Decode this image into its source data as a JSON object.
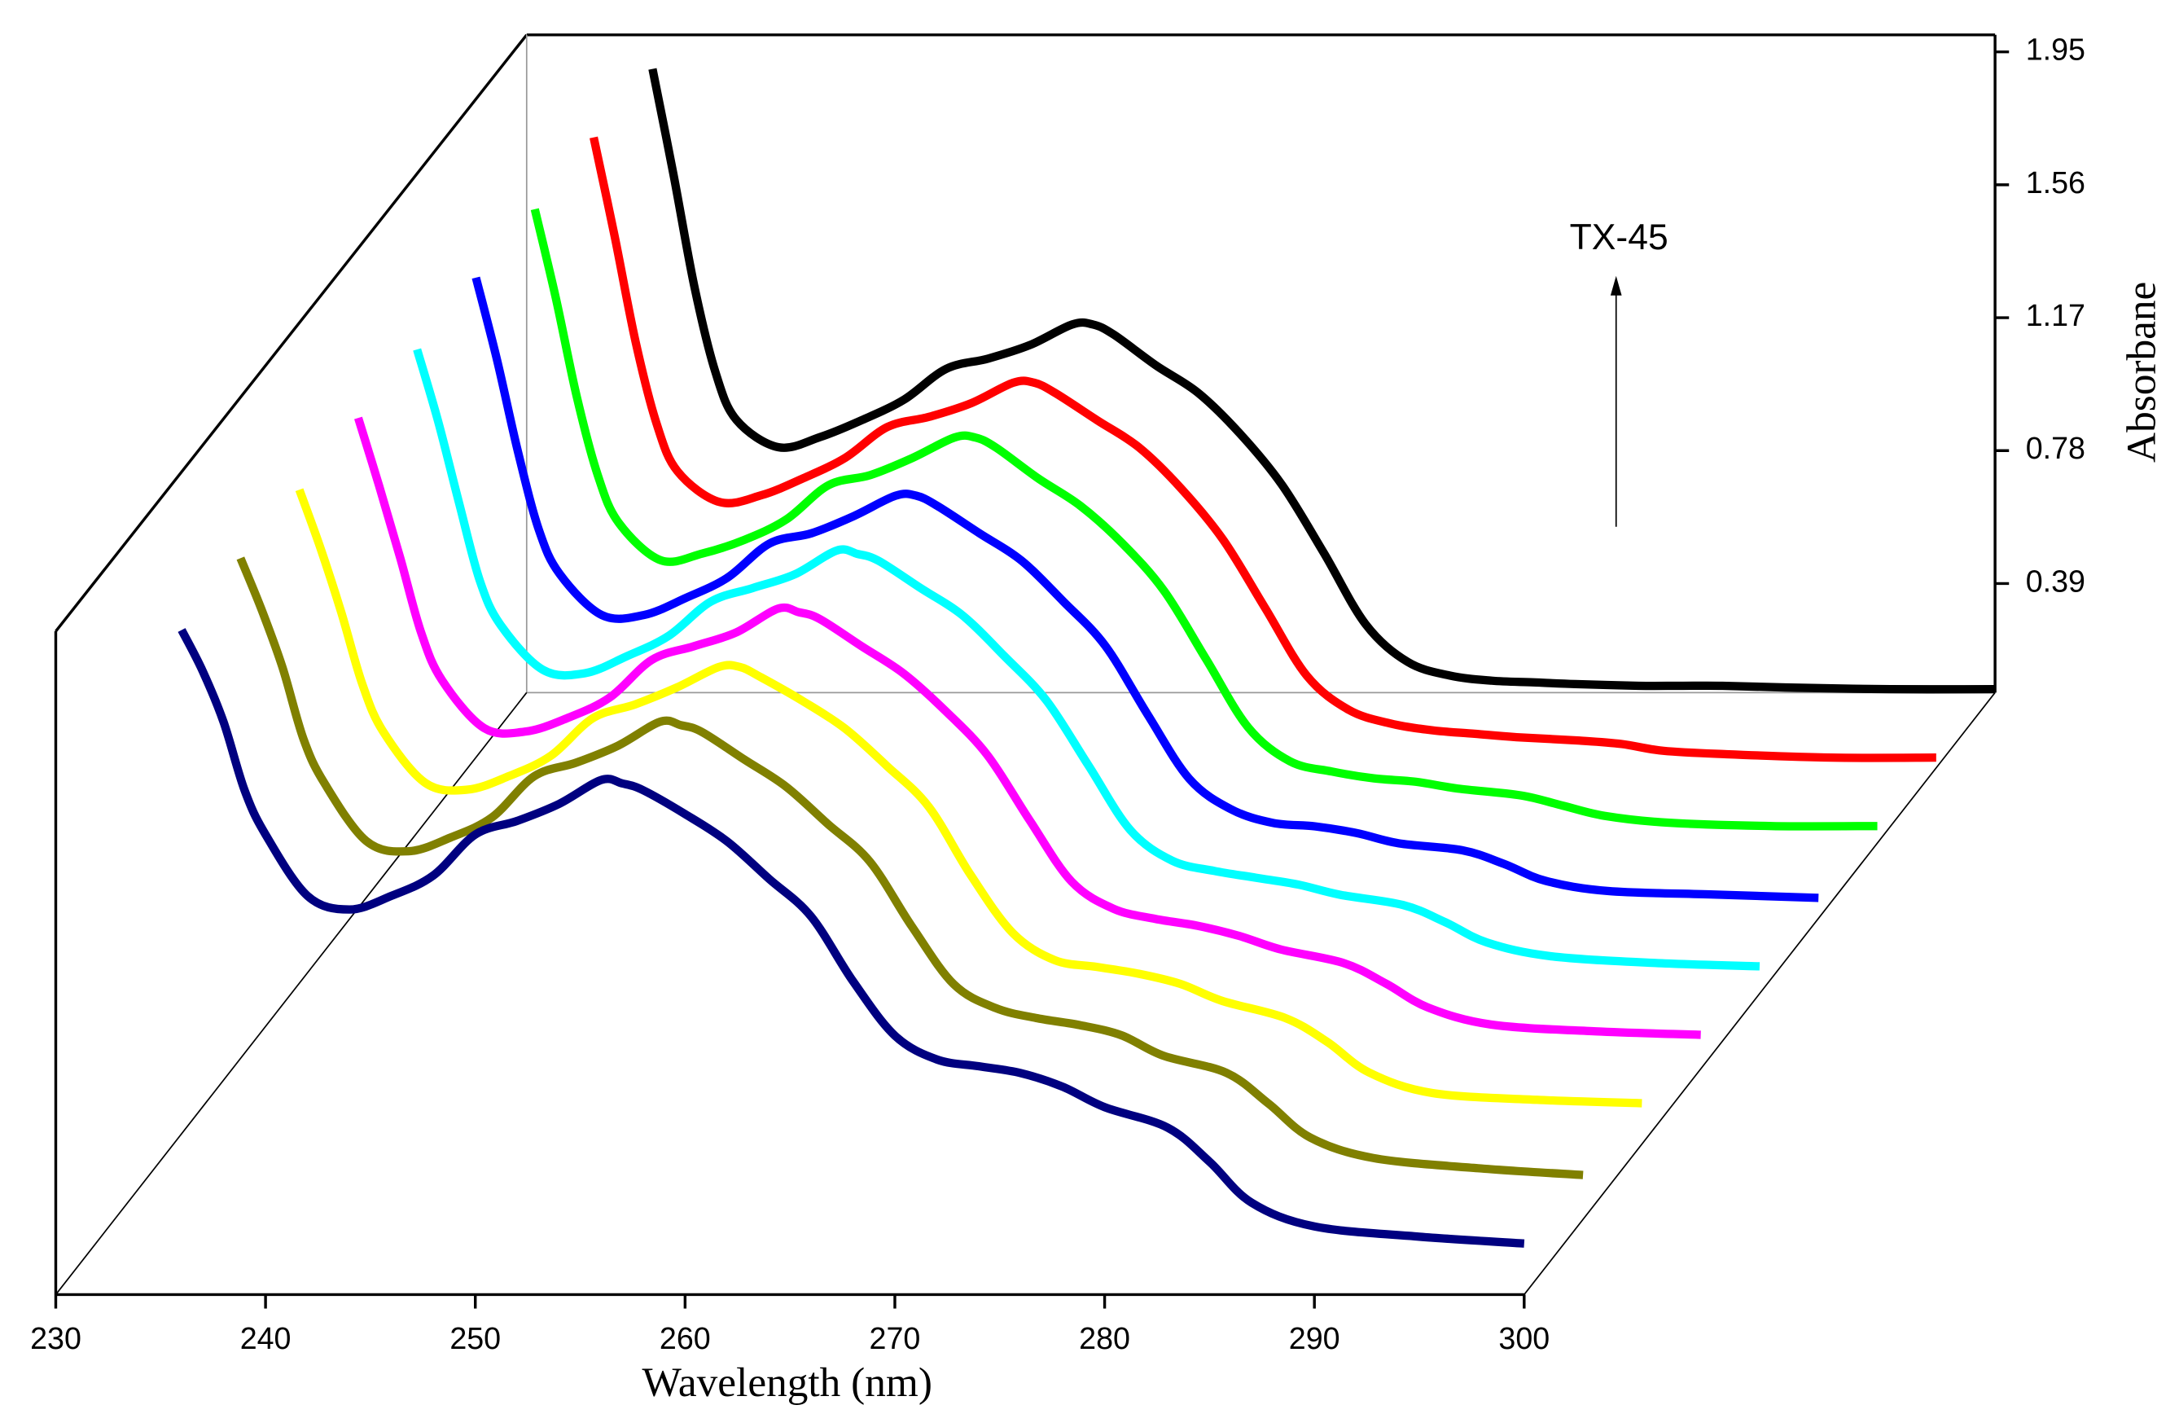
{
  "chart_data": {
    "type": "waterfall",
    "xlabel": "Wavelength (nm)",
    "ylabel": "Absorbane",
    "annotation": "TX-45",
    "x": [
      236,
      237,
      238,
      239,
      240,
      242,
      244,
      246,
      248,
      250,
      252,
      254,
      256,
      257,
      258,
      260,
      262,
      264,
      266,
      268,
      270,
      272,
      274,
      276,
      278,
      280,
      283,
      285,
      287,
      290,
      295,
      300
    ],
    "xlim": [
      230,
      300
    ],
    "xticks": [
      230,
      240,
      250,
      260,
      270,
      280,
      290,
      300
    ],
    "ylim": [
      0.07,
      2.0
    ],
    "yticks": [
      0.39,
      0.78,
      1.17,
      1.56,
      1.95
    ],
    "series": [
      {
        "color": "#000000",
        "values": [
          1.9,
          1.59,
          1.26,
          1.01,
          0.87,
          0.79,
          0.82,
          0.87,
          0.93,
          1.02,
          1.05,
          1.09,
          1.15,
          1.15,
          1.12,
          1.03,
          0.95,
          0.83,
          0.68,
          0.48,
          0.27,
          0.16,
          0.12,
          0.105,
          0.1,
          0.095,
          0.09,
          0.09,
          0.09,
          0.085,
          0.08,
          0.08
        ]
      },
      {
        "color": "#ff0000",
        "values": [
          1.92,
          1.63,
          1.32,
          1.08,
          0.94,
          0.85,
          0.87,
          0.92,
          0.98,
          1.07,
          1.1,
          1.14,
          1.2,
          1.2,
          1.17,
          1.09,
          1.01,
          0.89,
          0.74,
          0.54,
          0.34,
          0.24,
          0.2,
          0.18,
          0.17,
          0.16,
          0.15,
          0.14,
          0.12,
          0.11,
          0.1,
          0.1
        ]
      },
      {
        "color": "#00ff00",
        "values": [
          1.93,
          1.67,
          1.38,
          1.15,
          1.01,
          0.9,
          0.92,
          0.96,
          1.02,
          1.12,
          1.15,
          1.2,
          1.26,
          1.26,
          1.23,
          1.14,
          1.06,
          0.95,
          0.81,
          0.61,
          0.41,
          0.31,
          0.28,
          0.26,
          0.25,
          0.23,
          0.21,
          0.18,
          0.15,
          0.13,
          0.12,
          0.12
        ]
      },
      {
        "color": "#0000ff",
        "values": [
          1.95,
          1.71,
          1.44,
          1.21,
          1.08,
          0.96,
          0.96,
          1.01,
          1.07,
          1.17,
          1.2,
          1.25,
          1.31,
          1.31,
          1.28,
          1.2,
          1.12,
          1.0,
          0.87,
          0.67,
          0.48,
          0.39,
          0.35,
          0.34,
          0.32,
          0.29,
          0.27,
          0.23,
          0.18,
          0.15,
          0.14,
          0.13
        ]
      },
      {
        "color": "#00ffff",
        "values": [
          1.96,
          1.75,
          1.51,
          1.28,
          1.15,
          1.02,
          1.01,
          1.06,
          1.12,
          1.22,
          1.26,
          1.3,
          1.37,
          1.36,
          1.34,
          1.26,
          1.18,
          1.06,
          0.93,
          0.74,
          0.55,
          0.46,
          0.43,
          0.41,
          0.39,
          0.36,
          0.33,
          0.28,
          0.22,
          0.18,
          0.16,
          0.15
        ]
      },
      {
        "color": "#ff00ff",
        "values": [
          1.98,
          1.78,
          1.57,
          1.35,
          1.21,
          1.07,
          1.06,
          1.1,
          1.16,
          1.27,
          1.31,
          1.35,
          1.42,
          1.41,
          1.39,
          1.31,
          1.23,
          1.12,
          0.99,
          0.8,
          0.62,
          0.54,
          0.51,
          0.49,
          0.46,
          0.42,
          0.38,
          0.32,
          0.25,
          0.2,
          0.18,
          0.17
        ]
      },
      {
        "color": "#ffff00",
        "values": [
          1.99,
          1.82,
          1.63,
          1.42,
          1.28,
          1.13,
          1.11,
          1.15,
          1.21,
          1.32,
          1.36,
          1.41,
          1.47,
          1.47,
          1.44,
          1.37,
          1.29,
          1.18,
          1.06,
          0.86,
          0.69,
          0.61,
          0.59,
          0.57,
          0.54,
          0.49,
          0.44,
          0.37,
          0.28,
          0.22,
          0.2,
          0.19
        ]
      },
      {
        "color": "#808000",
        "values": [
          2.01,
          1.86,
          1.69,
          1.48,
          1.35,
          1.18,
          1.15,
          1.19,
          1.25,
          1.37,
          1.41,
          1.46,
          1.53,
          1.52,
          1.5,
          1.42,
          1.34,
          1.23,
          1.12,
          0.93,
          0.76,
          0.69,
          0.66,
          0.64,
          0.61,
          0.55,
          0.5,
          0.41,
          0.31,
          0.25,
          0.22,
          0.2
        ]
      },
      {
        "color": "#000080",
        "values": [
          2.02,
          1.9,
          1.75,
          1.55,
          1.42,
          1.24,
          1.2,
          1.24,
          1.3,
          1.42,
          1.46,
          1.51,
          1.58,
          1.57,
          1.55,
          1.48,
          1.4,
          1.29,
          1.18,
          0.99,
          0.83,
          0.76,
          0.74,
          0.72,
          0.68,
          0.62,
          0.56,
          0.46,
          0.34,
          0.27,
          0.24,
          0.22
        ]
      }
    ]
  }
}
